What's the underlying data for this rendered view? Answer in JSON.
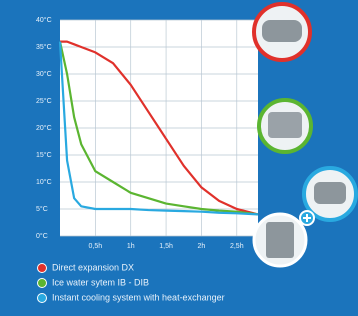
{
  "chart_data": {
    "type": "line",
    "x": [
      0,
      0.1,
      0.2,
      0.3,
      0.5,
      0.75,
      1,
      1.25,
      1.5,
      1.75,
      2,
      2.25,
      2.5,
      2.8
    ],
    "series": [
      {
        "name": "Direct expansion DX",
        "color": "#e0312b",
        "values": [
          36,
          36,
          35.5,
          35,
          34,
          32,
          28,
          23,
          18,
          13,
          9,
          6.5,
          5,
          4
        ]
      },
      {
        "name": "Ice water sytem IB - DIB",
        "color": "#5bb531",
        "values": [
          36,
          30,
          22,
          17,
          12,
          10,
          8,
          7,
          6,
          5.5,
          5,
          4.7,
          4.5,
          4
        ]
      },
      {
        "name": "Instant cooling system with heat-exchanger",
        "color": "#29a9e0",
        "values": [
          36,
          14,
          7,
          5.5,
          5,
          5,
          5,
          4.8,
          4.7,
          4.6,
          4.5,
          4.3,
          4.2,
          4
        ]
      }
    ],
    "xlim": [
      0,
      2.8
    ],
    "xticks": [
      {
        "value": 0.5,
        "label": "0,5h"
      },
      {
        "value": 1,
        "label": "1h"
      },
      {
        "value": 1.5,
        "label": "1,5h"
      },
      {
        "value": 2,
        "label": "2h"
      },
      {
        "value": 2.5,
        "label": "2,5h"
      }
    ],
    "ylim": [
      0,
      40
    ],
    "yticks": [
      {
        "value": 0,
        "label": "0°C"
      },
      {
        "value": 5,
        "label": "5°C"
      },
      {
        "value": 10,
        "label": "10°C"
      },
      {
        "value": 15,
        "label": "15°C"
      },
      {
        "value": 20,
        "label": "20°C"
      },
      {
        "value": 25,
        "label": "25°C"
      },
      {
        "value": 30,
        "label": "30°C"
      },
      {
        "value": 35,
        "label": "35°C"
      },
      {
        "value": 40,
        "label": "40°C"
      }
    ],
    "grid": true
  }
}
